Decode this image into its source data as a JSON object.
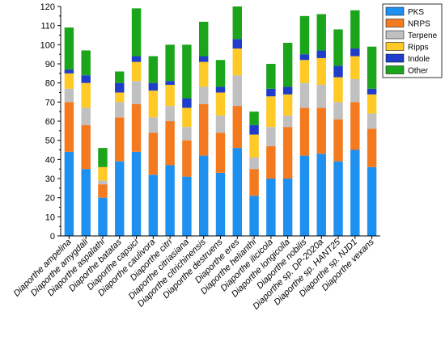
{
  "chart_data": {
    "type": "bar",
    "stacked": true,
    "categories": [
      "Diaporthe ampelina",
      "Diaporthe amygdali",
      "Diaporthe aspalathi",
      "Diaporthe batatas",
      "Diaporthe capsici",
      "Diaporthe caulivora",
      "Diaporthe citri",
      "Diaporthe citriasiana",
      "Diaporthe citrichinensis",
      "Diaporthe destruens",
      "Diaporthe eres",
      "Diaporthe helianthi",
      "Diaporthe ilicicola",
      "Diaporthe longicolla",
      "Diaporthe nobilis",
      "Diaporthe sp. DP-2020a",
      "Diaporthe sp. HANT25",
      "Diaporthe sp. NJD1",
      "Diaporthe vexans"
    ],
    "series": [
      {
        "name": "PKS",
        "color": "#1E90F0",
        "values": [
          44,
          35,
          20,
          39,
          44,
          32,
          37,
          31,
          42,
          33,
          46,
          21,
          30,
          30,
          42,
          43,
          39,
          45,
          36
        ]
      },
      {
        "name": "NRPS",
        "color": "#F47A20",
        "values": [
          26,
          23,
          7,
          23,
          25,
          22,
          23,
          19,
          27,
          21,
          22,
          14,
          17,
          27,
          25,
          24,
          22,
          25,
          20
        ]
      },
      {
        "name": "Terpene",
        "color": "#C0C0C0",
        "values": [
          7,
          9,
          2,
          8,
          12,
          8,
          8,
          7,
          9,
          9,
          16,
          6,
          10,
          6,
          13,
          12,
          9,
          12,
          8
        ]
      },
      {
        "name": "Ripps",
        "color": "#FFC926",
        "values": [
          8,
          13,
          7,
          5,
          10,
          14,
          11,
          10,
          13,
          12,
          14,
          12,
          16,
          11,
          12,
          14,
          13,
          12,
          10
        ]
      },
      {
        "name": "Indole",
        "color": "#1F3DC8",
        "values": [
          2,
          4,
          0,
          5,
          3,
          4,
          2,
          5,
          3,
          3,
          5,
          5,
          4,
          4,
          3,
          4,
          6,
          4,
          3
        ]
      },
      {
        "name": "Other",
        "color": "#1AA51A",
        "values": [
          22,
          13,
          10,
          6,
          25,
          14,
          19,
          28,
          18,
          14,
          17,
          7,
          13,
          23,
          20,
          19,
          19,
          20,
          22
        ]
      }
    ],
    "ylim": [
      0,
      120
    ],
    "yticks": [
      0,
      10,
      20,
      30,
      40,
      50,
      60,
      70,
      80,
      90,
      100,
      110,
      120
    ],
    "xlabel": "",
    "ylabel": "",
    "title": "",
    "grid": false,
    "legend_position": "top-right"
  }
}
